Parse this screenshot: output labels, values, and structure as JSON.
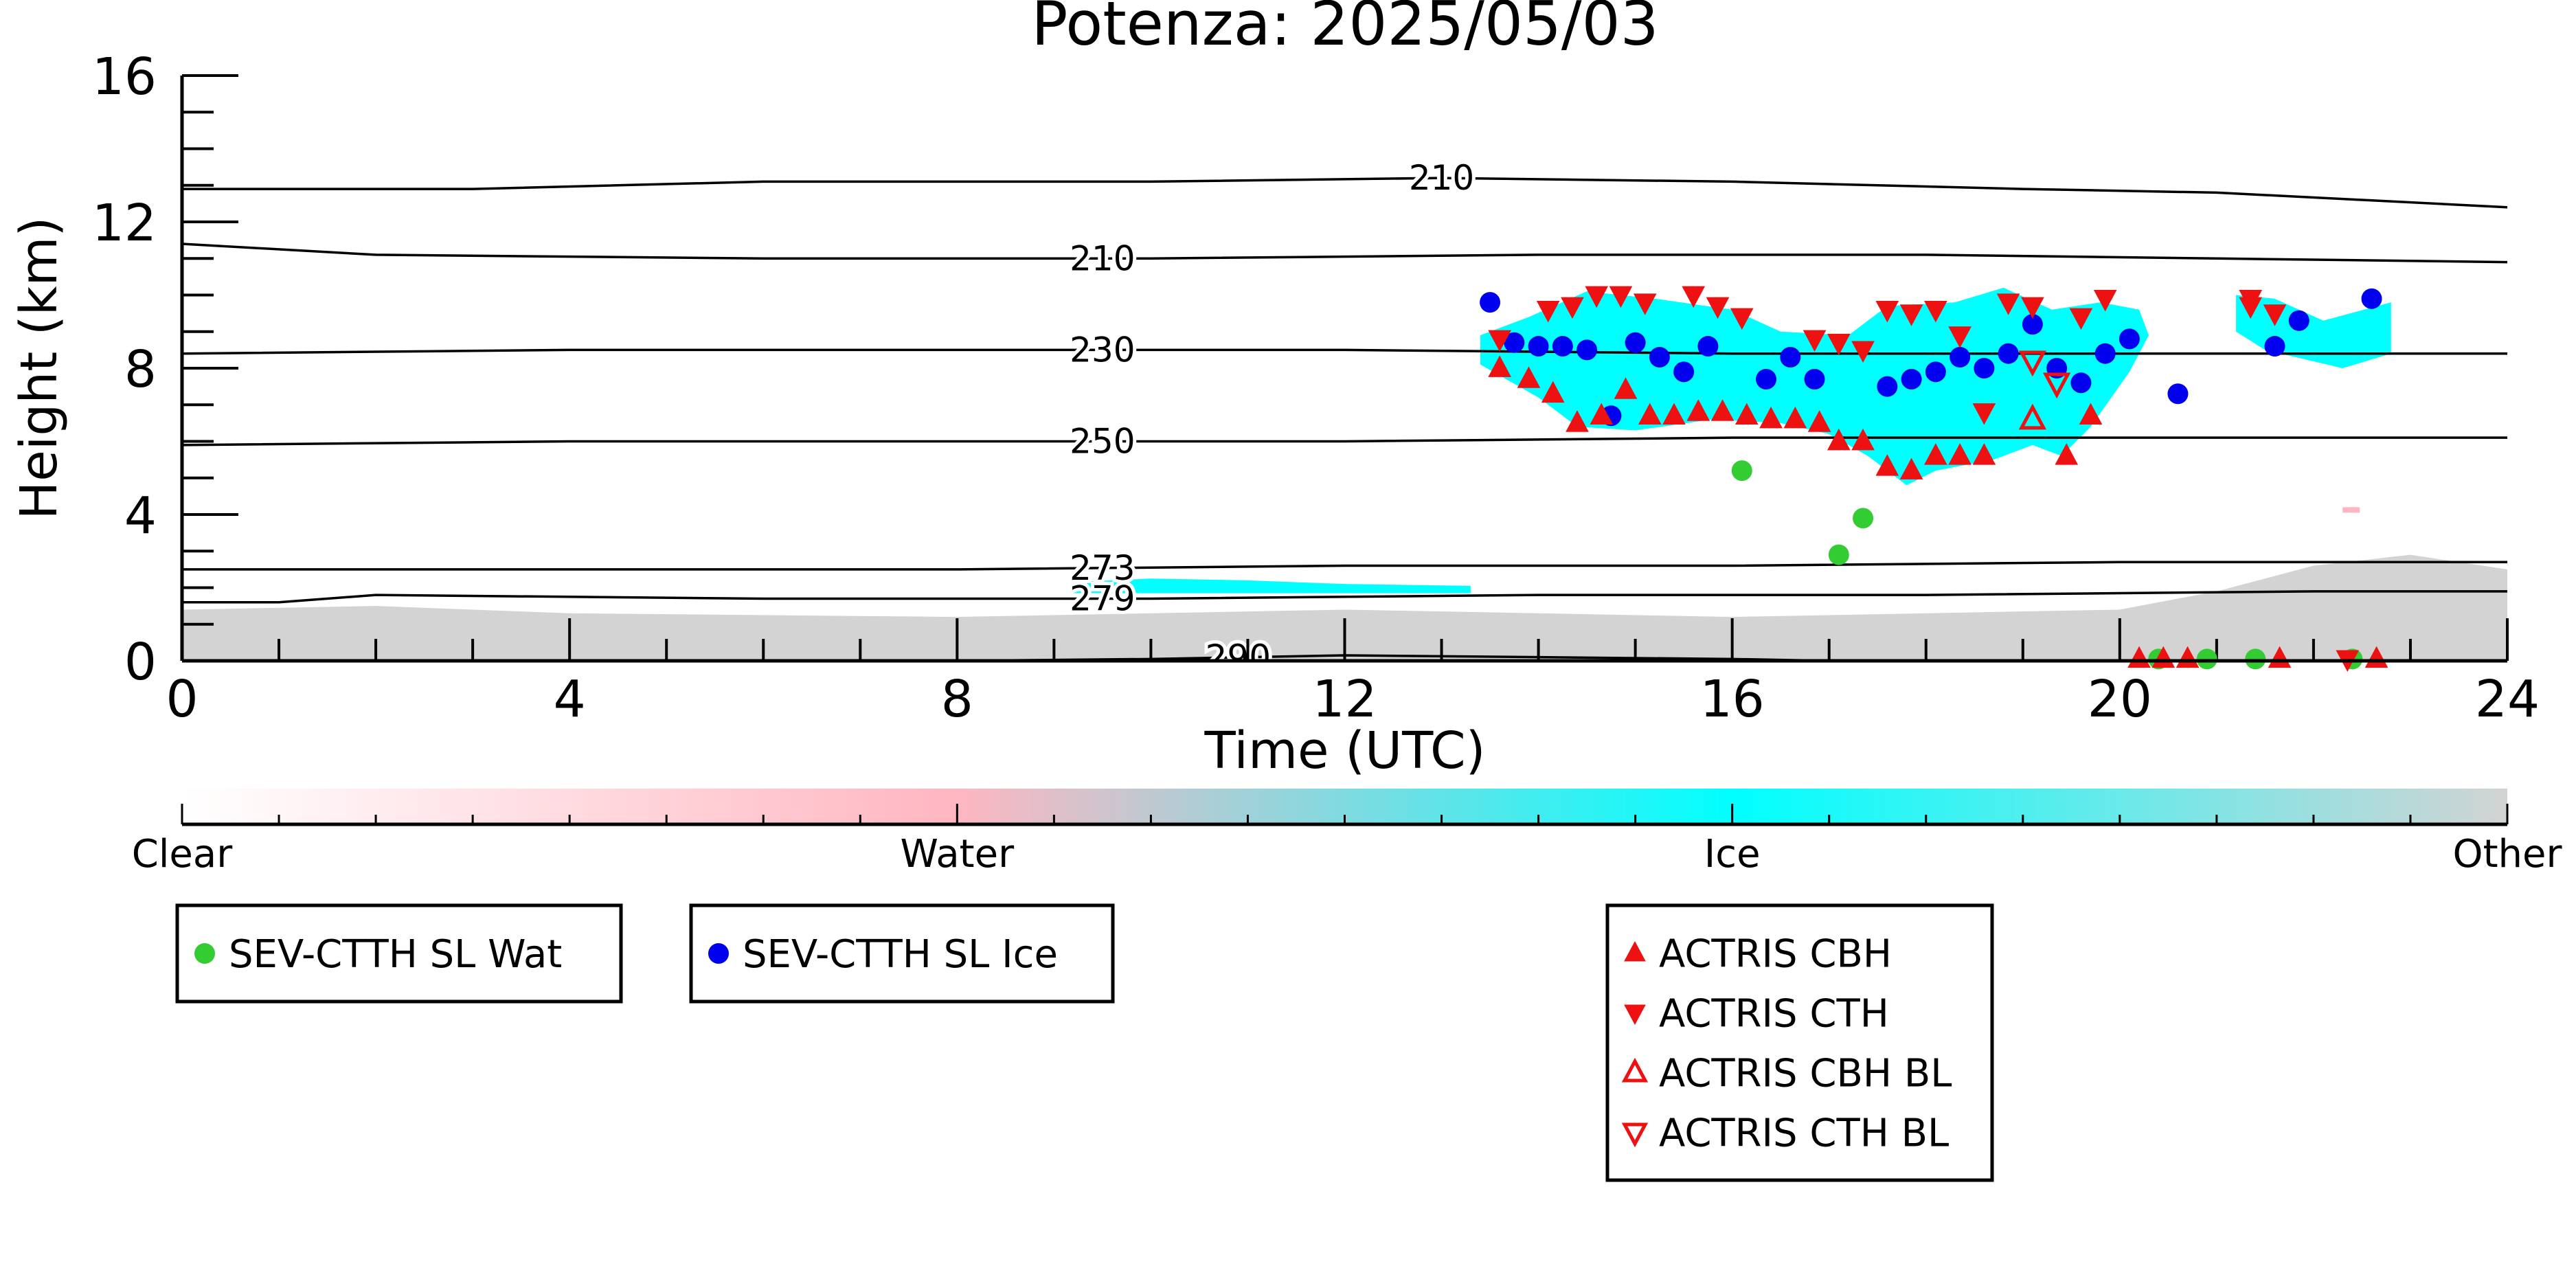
{
  "chart_data": {
    "type": "scatter",
    "title": "Potenza: 2025/05/03",
    "xlabel": "Time (UTC)",
    "ylabel": "Height (km)",
    "xlim": [
      0,
      24
    ],
    "ylim": [
      0,
      16
    ],
    "x_ticks": [
      0,
      4,
      8,
      12,
      16,
      20,
      24
    ],
    "y_ticks": [
      0,
      4,
      8,
      12,
      16
    ],
    "grid": false,
    "colorbar": {
      "labels": [
        "Clear",
        "Water",
        "Ice",
        "Other"
      ],
      "colors": [
        "#ffffff",
        "#ffb6c1",
        "#00ffff",
        "#d3d3d3"
      ]
    },
    "contours": [
      {
        "label": "210",
        "label_x": 13.0,
        "points": [
          [
            0,
            12.9
          ],
          [
            3,
            12.9
          ],
          [
            6,
            13.1
          ],
          [
            10,
            13.1
          ],
          [
            13,
            13.2
          ],
          [
            16,
            13.1
          ],
          [
            19,
            12.9
          ],
          [
            21,
            12.8
          ],
          [
            22.5,
            12.6
          ],
          [
            24,
            12.4
          ]
        ]
      },
      {
        "label": "210",
        "label_x": 9.5,
        "points": [
          [
            0,
            11.4
          ],
          [
            2,
            11.1
          ],
          [
            6,
            11.0
          ],
          [
            10,
            11.0
          ],
          [
            14,
            11.1
          ],
          [
            18,
            11.1
          ],
          [
            21,
            11.0
          ],
          [
            24,
            10.9
          ]
        ]
      },
      {
        "label": "230",
        "label_x": 9.5,
        "points": [
          [
            0,
            8.4
          ],
          [
            4,
            8.5
          ],
          [
            8,
            8.5
          ],
          [
            12,
            8.5
          ],
          [
            16,
            8.4
          ],
          [
            20,
            8.4
          ],
          [
            24,
            8.4
          ]
        ]
      },
      {
        "label": "250",
        "label_x": 9.5,
        "points": [
          [
            0,
            5.9
          ],
          [
            4,
            6.0
          ],
          [
            8,
            6.0
          ],
          [
            12,
            6.0
          ],
          [
            16,
            6.1
          ],
          [
            20,
            6.1
          ],
          [
            24,
            6.1
          ]
        ]
      },
      {
        "label": "273",
        "label_x": 9.5,
        "points": [
          [
            0,
            2.5
          ],
          [
            4,
            2.5
          ],
          [
            8,
            2.5
          ],
          [
            12,
            2.6
          ],
          [
            16,
            2.6
          ],
          [
            20,
            2.7
          ],
          [
            24,
            2.7
          ]
        ]
      },
      {
        "label": "279",
        "label_x": 9.5,
        "points": [
          [
            0,
            1.6
          ],
          [
            1,
            1.6
          ],
          [
            2,
            1.8
          ],
          [
            6,
            1.7
          ],
          [
            10,
            1.7
          ],
          [
            14,
            1.8
          ],
          [
            18,
            1.8
          ],
          [
            22,
            1.9
          ],
          [
            24,
            1.9
          ]
        ]
      },
      {
        "label": "290",
        "label_x": 10.9,
        "points": [
          [
            8,
            0.0
          ],
          [
            10,
            0.05
          ],
          [
            12,
            0.15
          ],
          [
            14,
            0.1
          ],
          [
            16,
            0.05
          ],
          [
            17,
            0.0
          ]
        ]
      }
    ],
    "series": [
      {
        "name": "SEV-CTTH SL Wat",
        "marker": "circle",
        "color": "#33cc33",
        "x": [
          16.1,
          17.1,
          17.35,
          20.4,
          20.9,
          21.4,
          22.4
        ],
        "y": [
          5.2,
          2.9,
          3.9,
          0.05,
          0.05,
          0.05,
          0.05
        ]
      },
      {
        "name": "SEV-CTTH SL Ice",
        "marker": "circle",
        "color": "#0000ee",
        "x": [
          13.5,
          13.75,
          14.0,
          14.25,
          14.5,
          14.75,
          15.0,
          15.25,
          15.5,
          15.75,
          16.35,
          16.6,
          16.85,
          17.6,
          17.85,
          18.1,
          18.35,
          18.6,
          18.85,
          19.1,
          19.35,
          19.6,
          19.85,
          20.1,
          20.6,
          21.6,
          21.85,
          22.6
        ],
        "y": [
          9.8,
          8.7,
          8.6,
          8.6,
          8.5,
          6.7,
          8.7,
          8.3,
          7.9,
          8.6,
          7.7,
          8.3,
          7.7,
          7.5,
          7.7,
          7.9,
          8.3,
          8.0,
          8.4,
          9.2,
          8.0,
          7.6,
          8.4,
          8.8,
          7.3,
          8.6,
          9.3,
          9.9
        ]
      },
      {
        "name": "ACTRIS CBH",
        "marker": "triangle-up",
        "color": "#ee1111",
        "x": [
          13.6,
          13.9,
          14.15,
          14.4,
          14.65,
          14.9,
          15.15,
          15.4,
          15.65,
          15.9,
          16.15,
          16.4,
          16.65,
          16.9,
          17.1,
          17.35,
          17.6,
          17.85,
          18.1,
          18.35,
          18.6,
          19.45,
          19.7,
          20.2,
          20.45,
          20.7,
          21.65,
          22.65
        ],
        "y": [
          8.0,
          7.7,
          7.3,
          6.5,
          6.7,
          7.4,
          6.7,
          6.7,
          6.8,
          6.8,
          6.7,
          6.6,
          6.6,
          6.5,
          6.0,
          6.0,
          5.3,
          5.2,
          5.6,
          5.6,
          5.6,
          5.6,
          6.7,
          0.05,
          0.05,
          0.05,
          0.05,
          0.05
        ]
      },
      {
        "name": "ACTRIS CTH",
        "marker": "triangle-down",
        "color": "#ee1111",
        "x": [
          13.6,
          14.1,
          14.35,
          14.6,
          14.85,
          15.1,
          15.6,
          15.85,
          16.1,
          16.85,
          17.1,
          17.35,
          17.6,
          17.85,
          18.1,
          18.35,
          18.6,
          18.85,
          19.1,
          19.6,
          19.85,
          21.35,
          21.35,
          21.6,
          22.35
        ],
        "y": [
          8.8,
          9.6,
          9.7,
          10.0,
          10.0,
          9.8,
          10.0,
          9.7,
          9.4,
          8.8,
          8.7,
          8.5,
          9.6,
          9.5,
          9.6,
          8.9,
          6.8,
          9.8,
          9.7,
          9.4,
          9.9,
          9.9,
          9.7,
          9.5,
          0.05
        ]
      },
      {
        "name": "ACTRIS CBH BL",
        "marker": "triangle-up-open",
        "color": "#ee1111",
        "x": [
          19.1
        ],
        "y": [
          6.6
        ]
      },
      {
        "name": "ACTRIS CTH BL",
        "marker": "triangle-down-open",
        "color": "#ee1111",
        "x": [
          19.1,
          19.35
        ],
        "y": [
          8.2,
          7.6
        ]
      }
    ],
    "legend_left": [
      "SEV-CTTH SL Wat",
      "SEV-CTTH SL Ice"
    ],
    "legend_right": [
      "ACTRIS CBH",
      "ACTRIS CTH",
      "ACTRIS CBH BL",
      "ACTRIS CTH BL"
    ]
  }
}
